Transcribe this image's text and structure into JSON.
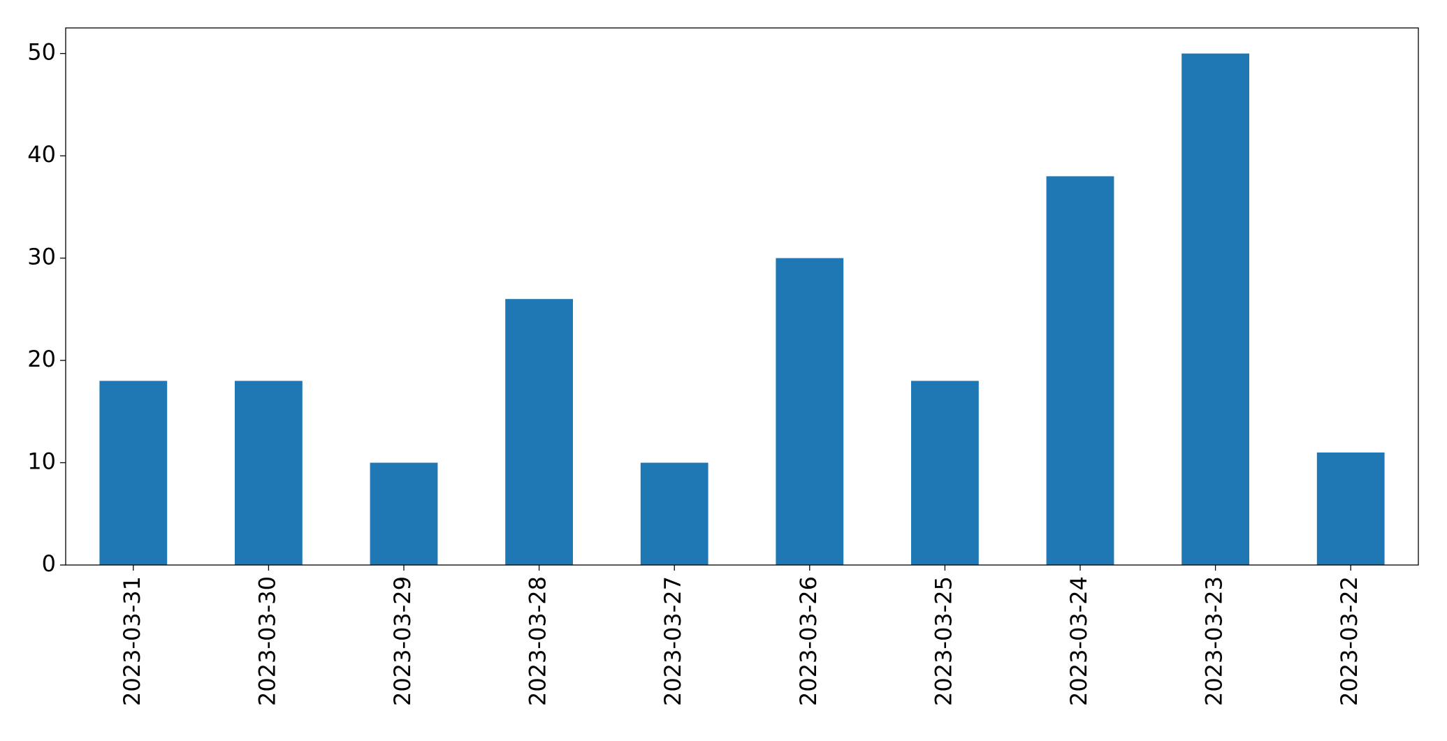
{
  "chart_data": {
    "type": "bar",
    "categories": [
      "2023-03-31",
      "2023-03-30",
      "2023-03-29",
      "2023-03-28",
      "2023-03-27",
      "2023-03-26",
      "2023-03-25",
      "2023-03-24",
      "2023-03-23",
      "2023-03-22"
    ],
    "values": [
      18,
      18,
      10,
      26,
      10,
      30,
      18,
      38,
      50,
      11
    ],
    "color": "#1f77b4",
    "ylim": [
      0,
      52.5
    ],
    "yticks": [
      0,
      10,
      20,
      30,
      40,
      50
    ],
    "grid": false
  }
}
